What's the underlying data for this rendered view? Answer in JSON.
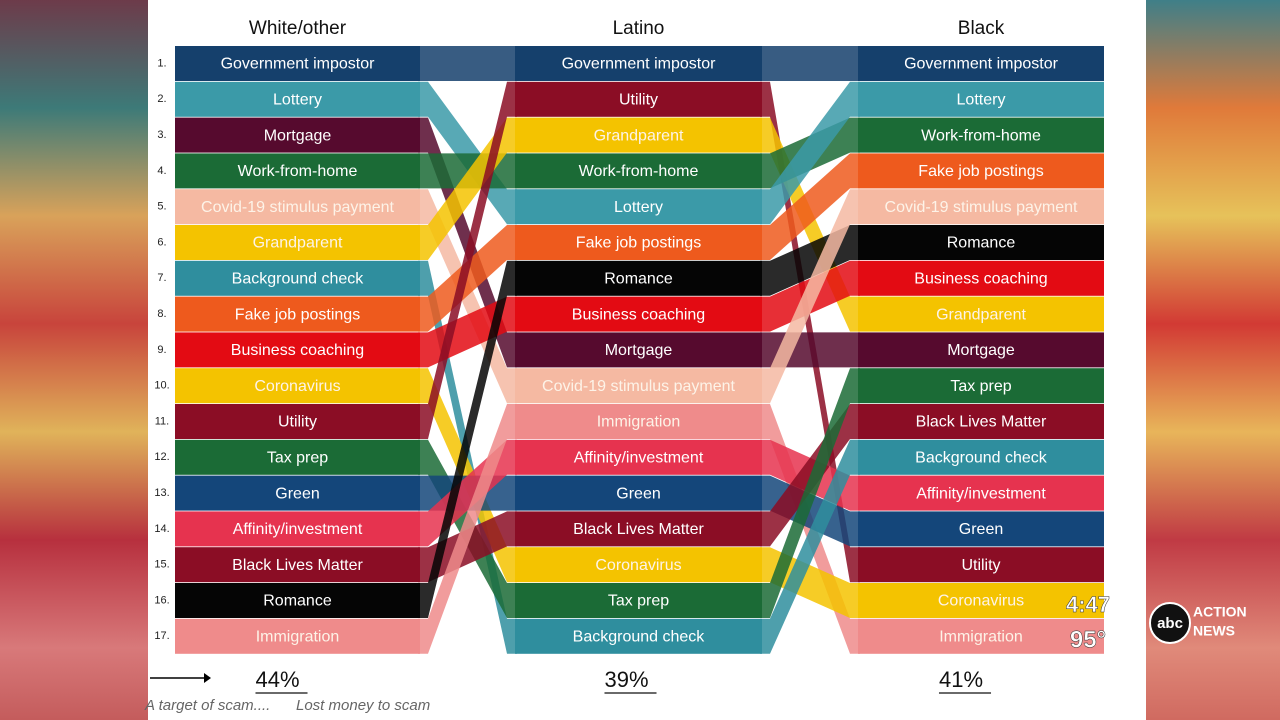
{
  "ranks": [
    "1.",
    "2.",
    "3.",
    "4.",
    "5.",
    "6.",
    "7.",
    "8.",
    "9.",
    "10.",
    "11.",
    "12.",
    "13.",
    "14.",
    "15.",
    "16.",
    "17."
  ],
  "colors": {
    "Government impostor": "#15406c",
    "Lottery": "#3b9aa8",
    "Mortgage": "#560a2e",
    "Work-from-home": "#1b6b36",
    "Covid-19 stimulus payment": "#f5b9a2",
    "Grandparent": "#f4c300",
    "Background check": "#2f8e9e",
    "Fake job postings": "#ee5a1d",
    "Business coaching": "#e30b13",
    "Coronavirus": "#f4c300",
    "Utility": "#8b0d25",
    "Tax prep": "#1b6b36",
    "Green": "#14467a",
    "Affinity/investment": "#e6334f",
    "Black Lives Matter": "#8b0d25",
    "Romance": "#050505",
    "Immigration": "#ef8b8b"
  },
  "columns": [
    {
      "header": "White/other",
      "percent": "44%",
      "items": [
        "Government impostor",
        "Lottery",
        "Mortgage",
        "Work-from-home",
        "Covid-19 stimulus payment",
        "Grandparent",
        "Background check",
        "Fake job postings",
        "Business coaching",
        "Coronavirus",
        "Utility",
        "Tax prep",
        "Green",
        "Affinity/investment",
        "Black Lives Matter",
        "Romance",
        "Immigration"
      ]
    },
    {
      "header": "Latino",
      "percent": "39%",
      "items": [
        "Government impostor",
        "Utility",
        "Grandparent",
        "Work-from-home",
        "Lottery",
        "Fake job postings",
        "Romance",
        "Business coaching",
        "Mortgage",
        "Covid-19 stimulus payment",
        "Immigration",
        "Affinity/investment",
        "Green",
        "Black Lives Matter",
        "Coronavirus",
        "Tax prep",
        "Background check"
      ]
    },
    {
      "header": "Black",
      "percent": "41%",
      "items": [
        "Government impostor",
        "Lottery",
        "Work-from-home",
        "Fake job postings",
        "Covid-19 stimulus payment",
        "Romance",
        "Business coaching",
        "Grandparent",
        "Mortgage",
        "Tax prep",
        "Black Lives Matter",
        "Background check",
        "Affinity/investment",
        "Green",
        "Utility",
        "Coronavirus",
        "Immigration"
      ]
    }
  ],
  "caption": {
    "left": "A target of scam....",
    "right": "Lost money to scam"
  },
  "bug": {
    "time": "4:47",
    "temperature": "95°",
    "logo": "abc",
    "brand_top": "ACTION",
    "brand_bottom": "NEWS"
  }
}
